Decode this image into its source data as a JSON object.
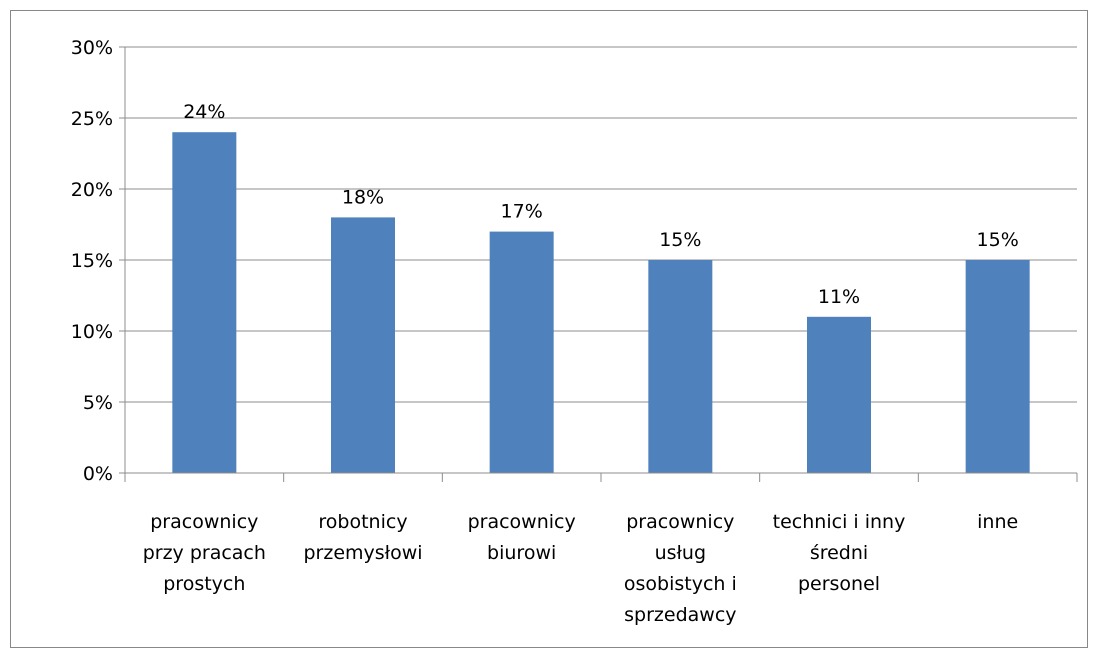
{
  "chart_data": {
    "type": "bar",
    "categories": [
      "pracownicy przy pracach prostych",
      "robotnicy przemysłowi",
      "pracownicy biurowi",
      "pracownicy usług osobistych i sprzedawcy",
      "technici i inny średni personel",
      "inne"
    ],
    "values": [
      24,
      18,
      17,
      15,
      11,
      15
    ],
    "value_labels": [
      "24%",
      "18%",
      "17%",
      "15%",
      "11%",
      "15%"
    ],
    "color": "#4f81bd",
    "ylim": [
      0,
      30
    ],
    "yticks": [
      {
        "value": 0,
        "label": "0%"
      },
      {
        "value": 5,
        "label": "5%"
      },
      {
        "value": 10,
        "label": "10%"
      },
      {
        "value": 15,
        "label": "15%"
      },
      {
        "value": 20,
        "label": "20%"
      },
      {
        "value": 25,
        "label": "25%"
      },
      {
        "value": 30,
        "label": "30%"
      }
    ],
    "grid": true
  }
}
